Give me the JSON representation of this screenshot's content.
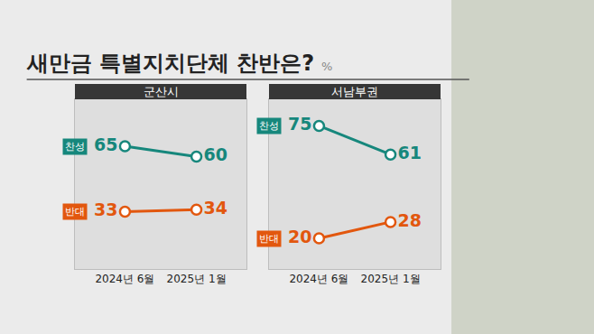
{
  "title": "새만금 특별지치단체 찬반은?",
  "unit": "%",
  "chart_data": [
    {
      "type": "line",
      "title": "군산시",
      "categories": [
        "2024년 6월",
        "2025년 1월"
      ],
      "series": [
        {
          "name": "찬성",
          "color": "#16877c",
          "marker": "circle",
          "values": [
            65,
            60
          ]
        },
        {
          "name": "반대",
          "color": "#e2570e",
          "marker": "circle",
          "values": [
            33,
            34
          ]
        }
      ],
      "ylim": [
        5,
        88
      ],
      "tick_labels": "x",
      "data_labels": true,
      "grid": false
    },
    {
      "type": "line",
      "title": "서남부권",
      "categories": [
        "2024년 6월",
        "2025년 1월"
      ],
      "series": [
        {
          "name": "찬성",
          "color": "#16877c",
          "marker": "circle",
          "values": [
            75,
            61
          ]
        },
        {
          "name": "반대",
          "color": "#e2570e",
          "marker": "circle",
          "values": [
            20,
            28
          ]
        }
      ],
      "ylim": [
        5,
        88
      ],
      "tick_labels": "x",
      "data_labels": true,
      "grid": false
    }
  ]
}
